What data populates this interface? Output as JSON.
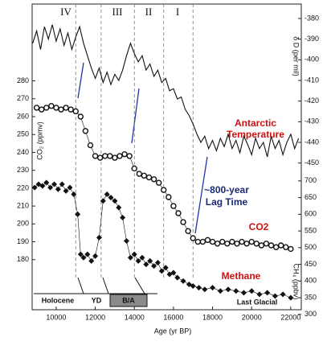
{
  "chart_data": {
    "type": "line",
    "xlabel": "Age (yr BP)",
    "ylabel": "CO₂ (ppmv)",
    "y2label": "δ D (per mil)",
    "y3label": "CH₄ (ppbv)",
    "xlim": [
      8770,
      22540
    ],
    "xticks": [
      10000,
      12000,
      14000,
      16000,
      18000,
      20000,
      22000
    ],
    "ylim": [
      152,
      323
    ],
    "yticks": [
      180,
      190,
      200,
      210,
      220,
      230,
      240,
      250,
      260,
      270,
      280
    ],
    "y2lim": [
      -521,
      -373
    ],
    "y2ticks": [
      -380,
      -390,
      -400,
      -410,
      -420,
      -430,
      -440,
      -450
    ],
    "y3lim": [
      314,
      1230
    ],
    "y3ticks": [
      300,
      350,
      400,
      450,
      500,
      550,
      600,
      650,
      700
    ],
    "vlines": [
      11000,
      12300,
      14000,
      15500,
      17000
    ],
    "periods": [
      "IV",
      "III",
      "II",
      "I"
    ],
    "annotations": [
      "Antarctic",
      "Temperature",
      "~800-year",
      "Lag Time",
      "CO2",
      "Methane",
      "Holocene",
      "YD",
      "B/A",
      "Last Glacial"
    ],
    "series": [
      {
        "name": "Antarctic Temperature",
        "axis": "y2",
        "color": "#111111",
        "marker": "none",
        "x": [
          8800,
          9000,
          9200,
          9400,
          9600,
          9800,
          10000,
          10200,
          10400,
          10600,
          10800,
          11000,
          11200,
          11400,
          11600,
          11800,
          12000,
          12200,
          12400,
          12600,
          12800,
          13000,
          13200,
          13400,
          13600,
          13800,
          14000,
          14200,
          14400,
          14600,
          14800,
          15000,
          15200,
          15400,
          15600,
          15800,
          16000,
          16200,
          16400,
          16600,
          16800,
          17000,
          17200,
          17400,
          17600,
          17800,
          18000,
          18200,
          18400,
          18600,
          18800,
          19000,
          19200,
          19400,
          19600,
          19800,
          20000,
          20200,
          20400,
          20600,
          20800,
          21000,
          21200,
          21400,
          21600,
          21800,
          22000,
          22200,
          22400
        ],
        "values": [
          -392,
          -386,
          -395,
          -384,
          -390,
          -383,
          -391,
          -385,
          -393,
          -387,
          -395,
          -389,
          -384,
          -392,
          -398,
          -404,
          -409,
          -404,
          -411,
          -406,
          -412,
          -407,
          -410,
          -405,
          -398,
          -392,
          -397,
          -401,
          -398,
          -405,
          -402,
          -408,
          -405,
          -411,
          -409,
          -415,
          -414,
          -419,
          -418,
          -424,
          -427,
          -431,
          -436,
          -440,
          -437,
          -443,
          -439,
          -444,
          -438,
          -442,
          -436,
          -443,
          -439,
          -445,
          -437,
          -441,
          -446,
          -438,
          -443,
          -440,
          -447,
          -437,
          -443,
          -439,
          -446,
          -440,
          -436,
          -443,
          -438
        ]
      },
      {
        "name": "CO2",
        "axis": "y",
        "color": "#111111",
        "marker": "circle",
        "x": [
          9000,
          9250,
          9500,
          9750,
          10000,
          10250,
          10500,
          10750,
          11000,
          11250,
          11500,
          11750,
          12000,
          12250,
          12500,
          12750,
          13000,
          13250,
          13500,
          13750,
          14000,
          14250,
          14500,
          14750,
          15000,
          15250,
          15500,
          15750,
          16000,
          16250,
          16500,
          16750,
          17000,
          17250,
          17500,
          17750,
          18000,
          18250,
          18500,
          18750,
          19000,
          19250,
          19500,
          19750,
          20000,
          20250,
          20500,
          20750,
          21000,
          21250,
          21500,
          21750,
          22000
        ],
        "values": [
          265,
          264,
          265,
          266,
          265,
          264,
          265,
          264,
          263,
          260,
          252,
          244,
          238,
          237,
          238,
          238,
          237,
          238,
          239,
          238,
          231,
          228,
          227,
          226,
          225,
          223,
          219,
          215,
          210,
          206,
          201,
          196,
          192,
          190,
          190,
          191,
          190,
          189,
          190,
          189,
          190,
          189,
          190,
          189,
          190,
          189,
          188,
          189,
          188,
          187,
          188,
          187,
          186
        ]
      },
      {
        "name": "Methane",
        "axis": "y3",
        "color": "#111111",
        "marker": "diamond",
        "x": [
          8900,
          9100,
          9300,
          9500,
          9700,
          9900,
          10100,
          10300,
          10500,
          10700,
          10900,
          11100,
          11250,
          11400,
          11600,
          11800,
          12000,
          12200,
          12400,
          12600,
          12800,
          13000,
          13200,
          13400,
          13600,
          13800,
          14000,
          14200,
          14400,
          14600,
          14800,
          15000,
          15200,
          15400,
          15600,
          15800,
          16000,
          16200,
          16500,
          16800,
          17000,
          17300,
          17600,
          18000,
          18400,
          18800,
          19200,
          19600,
          20000,
          20400,
          20800,
          21200,
          21600,
          22000
        ],
        "values": [
          680,
          690,
          685,
          695,
          680,
          690,
          675,
          690,
          670,
          680,
          660,
          600,
          480,
          470,
          480,
          460,
          475,
          530,
          640,
          660,
          650,
          640,
          620,
          590,
          520,
          470,
          480,
          460,
          470,
          450,
          460,
          445,
          455,
          430,
          440,
          420,
          425,
          410,
          400,
          390,
          385,
          380,
          375,
          380,
          370,
          375,
          370,
          365,
          370,
          360,
          365,
          355,
          360,
          350
        ]
      }
    ]
  }
}
